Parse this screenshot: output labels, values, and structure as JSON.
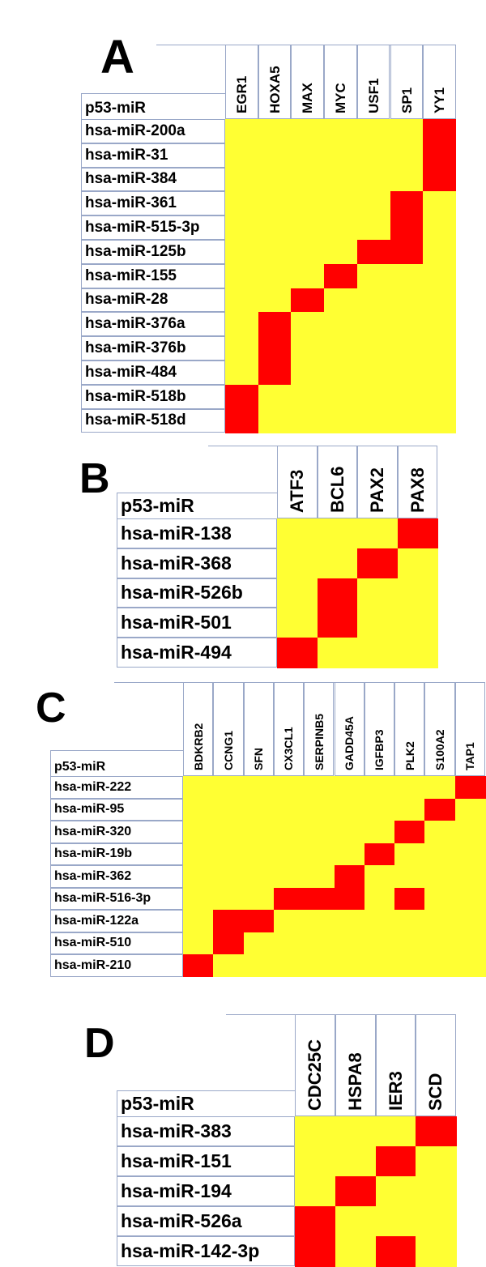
{
  "colors": {
    "off": "#ffff33",
    "on": "#ff0000",
    "border": "#9aa8c8"
  },
  "chart_data": [
    {
      "type": "heatmap",
      "panel": "A",
      "row_header": "p53-miR",
      "columns": [
        "EGR1",
        "HOXA5",
        "MAX",
        "MYC",
        "USF1",
        "SP1",
        "YY1"
      ],
      "rows": [
        "hsa-miR-200a",
        "hsa-miR-31",
        "hsa-miR-384",
        "hsa-miR-361",
        "hsa-miR-515-3p",
        "hsa-miR-125b",
        "hsa-miR-155",
        "hsa-miR-28",
        "hsa-miR-376a",
        "hsa-miR-376b",
        "hsa-miR-484",
        "hsa-miR-518b",
        "hsa-miR-518d"
      ],
      "matrix": [
        [
          0,
          0,
          0,
          0,
          0,
          0,
          1
        ],
        [
          0,
          0,
          0,
          0,
          0,
          0,
          1
        ],
        [
          0,
          0,
          0,
          0,
          0,
          0,
          1
        ],
        [
          0,
          0,
          0,
          0,
          0,
          1,
          0
        ],
        [
          0,
          0,
          0,
          0,
          0,
          1,
          0
        ],
        [
          0,
          0,
          0,
          0,
          1,
          1,
          0
        ],
        [
          0,
          0,
          0,
          1,
          0,
          0,
          0
        ],
        [
          0,
          0,
          1,
          0,
          0,
          0,
          0
        ],
        [
          0,
          1,
          0,
          0,
          0,
          0,
          0
        ],
        [
          0,
          1,
          0,
          0,
          0,
          0,
          0
        ],
        [
          0,
          1,
          0,
          0,
          0,
          0,
          0
        ],
        [
          1,
          0,
          0,
          0,
          0,
          0,
          0
        ],
        [
          1,
          0,
          0,
          0,
          0,
          0,
          0
        ]
      ]
    },
    {
      "type": "heatmap",
      "panel": "B",
      "row_header": "p53-miR",
      "columns": [
        "ATF3",
        "BCL6",
        "PAX2",
        "PAX8"
      ],
      "rows": [
        "hsa-miR-138",
        "hsa-miR-368",
        "hsa-miR-526b",
        "hsa-miR-501",
        "hsa-miR-494"
      ],
      "matrix": [
        [
          0,
          0,
          0,
          1
        ],
        [
          0,
          0,
          1,
          0
        ],
        [
          0,
          1,
          0,
          0
        ],
        [
          0,
          1,
          0,
          0
        ],
        [
          1,
          0,
          0,
          0
        ]
      ]
    },
    {
      "type": "heatmap",
      "panel": "C",
      "row_header": "p53-miR",
      "columns": [
        "BDKRB2",
        "CCNG1",
        "SFN",
        "CX3CL1",
        "SERPINB5",
        "GADD45A",
        "IGFBP3",
        "PLK2",
        "S100A2",
        "TAP1"
      ],
      "rows": [
        "hsa-miR-222",
        "hsa-miR-95",
        "hsa-miR-320",
        "hsa-miR-19b",
        "hsa-miR-362",
        "hsa-miR-516-3p",
        "hsa-miR-122a",
        "hsa-miR-510",
        "hsa-miR-210"
      ],
      "matrix": [
        [
          0,
          0,
          0,
          0,
          0,
          0,
          0,
          0,
          0,
          1
        ],
        [
          0,
          0,
          0,
          0,
          0,
          0,
          0,
          0,
          1,
          0
        ],
        [
          0,
          0,
          0,
          0,
          0,
          0,
          0,
          1,
          0,
          0
        ],
        [
          0,
          0,
          0,
          0,
          0,
          0,
          1,
          0,
          0,
          0
        ],
        [
          0,
          0,
          0,
          0,
          0,
          1,
          0,
          0,
          0,
          0
        ],
        [
          0,
          0,
          0,
          1,
          1,
          1,
          0,
          1,
          0,
          0
        ],
        [
          0,
          1,
          1,
          0,
          0,
          0,
          0,
          0,
          0,
          0
        ],
        [
          0,
          1,
          0,
          0,
          0,
          0,
          0,
          0,
          0,
          0
        ],
        [
          1,
          0,
          0,
          0,
          0,
          0,
          0,
          0,
          0,
          0
        ]
      ]
    },
    {
      "type": "heatmap",
      "panel": "D",
      "row_header": "p53-miR",
      "columns": [
        "CDC25C",
        "HSPA8",
        "IER3",
        "SCD"
      ],
      "rows": [
        "hsa-miR-383",
        "hsa-miR-151",
        "hsa-miR-194",
        "hsa-miR-526a",
        "hsa-miR-142-3p"
      ],
      "matrix": [
        [
          0,
          0,
          0,
          1
        ],
        [
          0,
          0,
          1,
          0
        ],
        [
          0,
          1,
          0,
          0
        ],
        [
          1,
          0,
          0,
          0
        ],
        [
          1,
          0,
          1,
          0
        ]
      ]
    }
  ]
}
